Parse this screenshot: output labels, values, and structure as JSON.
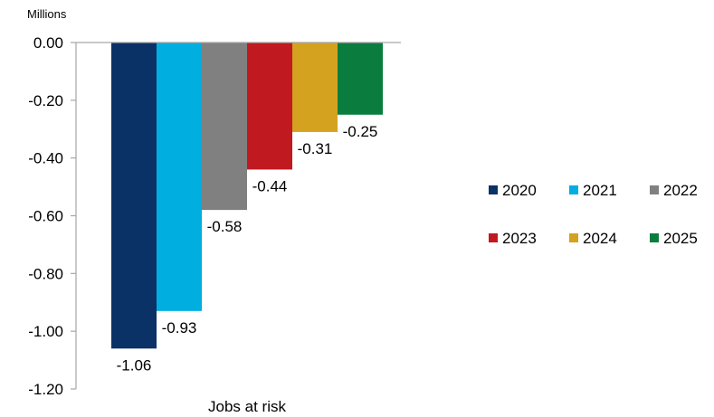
{
  "chart_data": {
    "type": "bar",
    "unit_label": "Millions",
    "xlabel": "Jobs at risk",
    "ylabel": "",
    "ylim": [
      -1.2,
      0.0
    ],
    "yticks": [
      "0.00",
      "-0.20",
      "-0.40",
      "-0.60",
      "-0.80",
      "-1.00",
      "-1.20"
    ],
    "grid": false,
    "legend_position": "right",
    "categories": [
      "Jobs at risk"
    ],
    "series": [
      {
        "name": "2020",
        "values": [
          -1.06
        ],
        "label": "-1.06",
        "color": "#0b3266"
      },
      {
        "name": "2021",
        "values": [
          -0.93
        ],
        "label": "-0.93",
        "color": "#00aee0"
      },
      {
        "name": "2022",
        "values": [
          -0.58
        ],
        "label": "-0.58",
        "color": "#808080"
      },
      {
        "name": "2023",
        "values": [
          -0.44
        ],
        "label": "-0.44",
        "color": "#c0191f"
      },
      {
        "name": "2024",
        "values": [
          -0.31
        ],
        "label": "-0.31",
        "color": "#d4a21f"
      },
      {
        "name": "2025",
        "values": [
          -0.25
        ],
        "label": "-0.25",
        "color": "#0a7d3e"
      }
    ]
  }
}
